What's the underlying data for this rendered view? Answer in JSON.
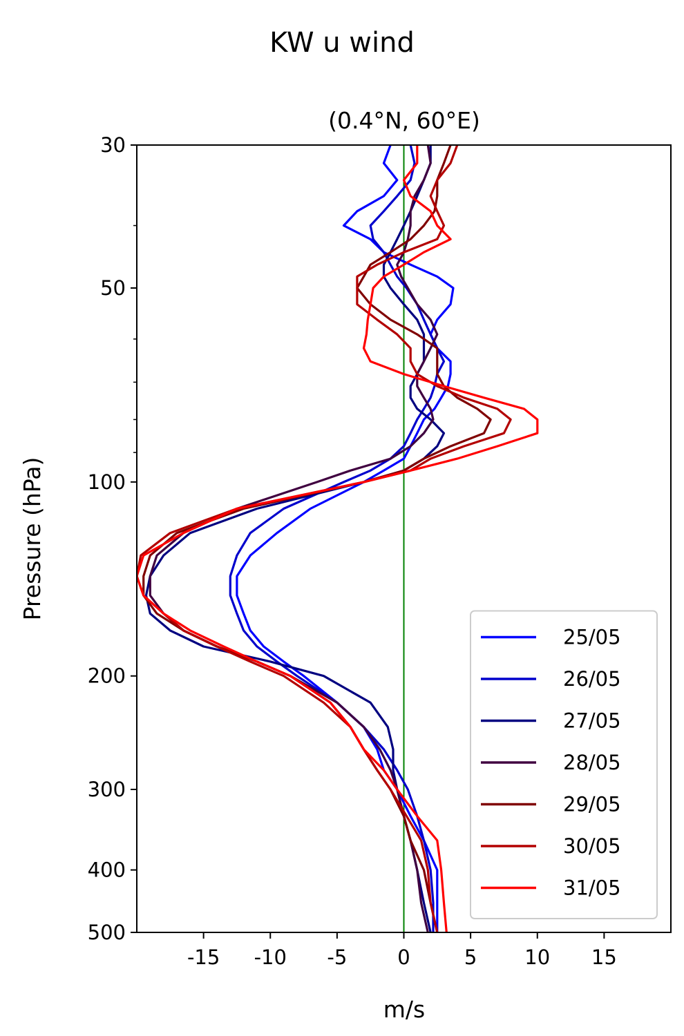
{
  "chart_data": {
    "type": "line",
    "suptitle": "KW u wind",
    "title": "(0.4°N, 60°E)",
    "xlabel": "m/s",
    "ylabel": "Pressure (hPa)",
    "xlim": [
      -20,
      20
    ],
    "ylim": [
      500,
      30
    ],
    "yscale": "log",
    "x_ticks": [
      -15,
      -10,
      -5,
      0,
      5,
      10,
      15
    ],
    "x_tick_labels": [
      "-15",
      "-10",
      "-5",
      "0",
      "5",
      "10",
      "15"
    ],
    "y_ticks": [
      30,
      50,
      100,
      200,
      300,
      400,
      500
    ],
    "y_tick_labels": [
      "30",
      "50",
      "100",
      "200",
      "300",
      "400",
      "500"
    ],
    "y_minor_ticks": [
      40,
      60,
      70,
      80,
      90
    ],
    "reference_line": {
      "x": 0,
      "color": "#008000"
    },
    "legend_position": "lower-right",
    "pressure": [
      30,
      32,
      34,
      36,
      38,
      40,
      42,
      44,
      46,
      48,
      50,
      53,
      56,
      59,
      62,
      65,
      68,
      71,
      74,
      77,
      80,
      84,
      88,
      92,
      96,
      100,
      110,
      120,
      130,
      140,
      150,
      160,
      170,
      180,
      190,
      200,
      220,
      240,
      260,
      280,
      300,
      330,
      360,
      400,
      450,
      500
    ],
    "series": [
      {
        "name": "25/05",
        "color": "#0000ff",
        "x": [
          -1,
          -1.5,
          -0.5,
          -1.5,
          -3.5,
          -4.5,
          -2.5,
          -1.5,
          0.5,
          2.5,
          3.7,
          3.5,
          2.5,
          2,
          2.5,
          3.5,
          3.5,
          3.3,
          2.8,
          2.3,
          1.5,
          1,
          0.5,
          0,
          -1.5,
          -3,
          -7,
          -9.5,
          -11.5,
          -12.5,
          -12.5,
          -12,
          -11.5,
          -10.5,
          -9,
          -7.5,
          -5,
          -3,
          -2,
          -1.5,
          -0.5,
          0.5,
          1.5,
          2.5,
          2.5,
          2.5
        ]
      },
      {
        "name": "26/05",
        "color": "#0000cc",
        "x": [
          0.5,
          0.8,
          0.5,
          -0.5,
          -1.5,
          -2.5,
          -2.3,
          -1.5,
          -1,
          -0.5,
          0.2,
          1,
          1.5,
          2,
          2.5,
          3,
          2.5,
          2.3,
          2,
          1.5,
          1,
          0.5,
          0,
          -1,
          -2.5,
          -4.5,
          -9,
          -11.5,
          -12.5,
          -13,
          -13,
          -12.5,
          -12,
          -11,
          -9.5,
          -8,
          -5,
          -3,
          -1.5,
          -0.5,
          0.3,
          1,
          1.5,
          2,
          2.2,
          2.2
        ]
      },
      {
        "name": "27/05",
        "color": "#000080",
        "x": [
          2,
          2,
          1.5,
          1,
          0.5,
          0,
          -0.5,
          -1,
          -1.5,
          -1.5,
          -1,
          0,
          1,
          1.5,
          1.5,
          1.5,
          1,
          0.5,
          0.5,
          1,
          2,
          3,
          2.5,
          1.5,
          0,
          -3,
          -11,
          -16,
          -18,
          -19,
          -19.3,
          -19,
          -17.5,
          -15,
          -10,
          -6,
          -2.5,
          -1.2,
          -0.8,
          -0.8,
          -0.5,
          0,
          0.5,
          1,
          1.5,
          2
        ]
      },
      {
        "name": "28/05",
        "color": "#400040",
        "x": [
          1.8,
          2,
          1.5,
          0.8,
          0.5,
          0.5,
          0.3,
          0,
          -0.5,
          -0.2,
          0.3,
          1,
          2,
          2.5,
          2,
          1.5,
          1,
          1,
          1.5,
          2,
          2.2,
          1.5,
          0.5,
          -1,
          -4,
          -6.5,
          -12.5,
          -16.5,
          -18.5,
          -19,
          -19,
          -18,
          -16.5,
          -14,
          -11,
          -8.5,
          -5,
          -3,
          -1.8,
          -1,
          -0.5,
          0,
          0.5,
          1,
          1.3,
          1.8
        ]
      },
      {
        "name": "29/05",
        "color": "#800000",
        "x": [
          3.5,
          3,
          2.5,
          2.5,
          2.3,
          1.5,
          0.5,
          -1,
          -2.5,
          -3,
          -3.5,
          -2.5,
          -1,
          1,
          2.5,
          2.5,
          2.5,
          3,
          4,
          5.5,
          6.5,
          6,
          3.5,
          1.5,
          0,
          -3,
          -12,
          -17,
          -19,
          -19.5,
          -19.5,
          -18.5,
          -16.5,
          -14,
          -11,
          -8.5,
          -5.5,
          -4,
          -3,
          -2,
          -1,
          0,
          0.5,
          1.5,
          2,
          2.5
        ]
      },
      {
        "name": "30/05",
        "color": "#b30000",
        "x": [
          4,
          3.5,
          2.5,
          2,
          2.5,
          3,
          2.5,
          0,
          -2,
          -3.5,
          -3.5,
          -3.5,
          -2,
          -0.5,
          0.5,
          0.5,
          1,
          2.5,
          4.5,
          7,
          8,
          7.5,
          4.5,
          2,
          0.5,
          -3,
          -12.5,
          -17.5,
          -19.7,
          -20,
          -19.5,
          -18,
          -16.5,
          -14,
          -11.5,
          -9,
          -6,
          -4,
          -3,
          -2,
          -1,
          0.2,
          1.3,
          1.8,
          2,
          2.5
        ]
      },
      {
        "name": "31/05",
        "color": "#ff0000",
        "x": [
          1,
          1,
          0,
          0.5,
          2,
          2.5,
          3.5,
          1.5,
          0,
          -1.5,
          -2.3,
          -2.5,
          -2.7,
          -2.8,
          -3,
          -2.5,
          0,
          3,
          6,
          9,
          10,
          10,
          7,
          4,
          0.5,
          -3,
          -12.5,
          -16.5,
          -19.5,
          -20,
          -19.5,
          -18,
          -16,
          -13.5,
          -11,
          -8.5,
          -5.5,
          -4,
          -3,
          -1.5,
          -0.5,
          1,
          2.5,
          2.8,
          3,
          3.2
        ]
      }
    ]
  }
}
